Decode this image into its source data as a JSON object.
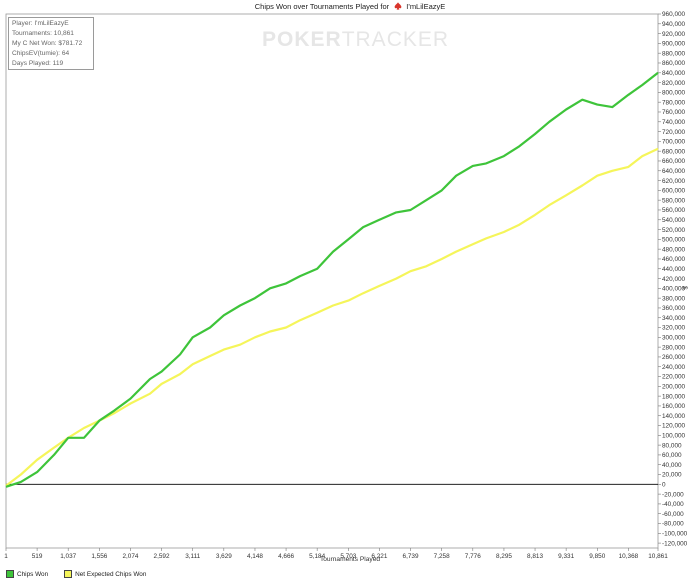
{
  "title": {
    "prefix": "Chips Won over Tournaments Played for",
    "player": "I'mLilEazyE"
  },
  "watermark": {
    "part1": "POKER",
    "part2": "TRACKER"
  },
  "info_box": {
    "player": "Player: I'mLilEazyE",
    "tournaments": "Tournaments: 10,861",
    "net_won": "My C Net Won: $781.72",
    "chips_ev": "ChipsEV(tumie): 64",
    "days_played": "Days Played: 119"
  },
  "legend": [
    {
      "label": "Chips Won",
      "color": "#3ec43a"
    },
    {
      "label": "Net Expected Chips Won",
      "color": "#f5f55a"
    }
  ],
  "colors": {
    "chips_won": "#3ec43a",
    "expected": "#f5f55a",
    "zero_line": "#000000",
    "axis": "#555555"
  },
  "chart_data": {
    "type": "line",
    "title": "Chips Won over Tournaments Played for I'mLilEazyE",
    "xlabel": "Tournaments Played",
    "ylabel": "$",
    "xlim": [
      1,
      10861
    ],
    "ylim": [
      -130000,
      960000
    ],
    "x_ticks": [
      1,
      519,
      1037,
      1556,
      2074,
      2592,
      3111,
      3629,
      4148,
      4666,
      5184,
      5703,
      6221,
      6739,
      7258,
      7776,
      8295,
      8813,
      9331,
      9850,
      10368,
      10861
    ],
    "x_tick_labels": [
      "1",
      "519",
      "1,037",
      "1,556",
      "2,074",
      "2,592",
      "3,111",
      "3,629",
      "4,148",
      "4,666",
      "5,184",
      "5,703",
      "6,221",
      "6,739",
      "7,258",
      "7,776",
      "8,295",
      "8,813",
      "9,331",
      "9,850",
      "10,368",
      "10,861"
    ],
    "y_ticks": [
      960000,
      940000,
      920000,
      900000,
      880000,
      860000,
      840000,
      820000,
      800000,
      780000,
      760000,
      740000,
      720000,
      700000,
      680000,
      660000,
      640000,
      620000,
      600000,
      580000,
      560000,
      540000,
      520000,
      500000,
      480000,
      460000,
      440000,
      420000,
      400000,
      380000,
      360000,
      340000,
      320000,
      300000,
      280000,
      260000,
      240000,
      220000,
      200000,
      180000,
      160000,
      140000,
      120000,
      100000,
      80000,
      60000,
      40000,
      20000,
      0,
      -20000,
      -40000,
      -60000,
      -80000,
      -100000,
      -120000
    ],
    "y_tick_labels": [
      "960,000",
      "940,000",
      "920,000",
      "900,000",
      "880,000",
      "860,000",
      "840,000",
      "820,000",
      "800,000",
      "780,000",
      "760,000",
      "740,000",
      "720,000",
      "700,000",
      "680,000",
      "660,000",
      "640,000",
      "620,000",
      "600,000",
      "580,000",
      "560,000",
      "540,000",
      "520,000",
      "500,000",
      "480,000",
      "460,000",
      "440,000",
      "420,000",
      "400,000",
      "380,000",
      "360,000",
      "340,000",
      "320,000",
      "300,000",
      "280,000",
      "260,000",
      "240,000",
      "220,000",
      "200,000",
      "180,000",
      "160,000",
      "140,000",
      "120,000",
      "100,000",
      "80,000",
      "60,000",
      "40,000",
      "20,000",
      "0",
      "-20,000",
      "-40,000",
      "-60,000",
      "-80,000",
      "-100,000",
      "-120,000"
    ],
    "grid": false,
    "legend_position": "bottom-left",
    "series": [
      {
        "name": "Chips Won",
        "x": [
          1,
          250,
          519,
          800,
          1037,
          1300,
          1556,
          1800,
          2074,
          2400,
          2592,
          2900,
          3111,
          3400,
          3629,
          3900,
          4148,
          4400,
          4666,
          4900,
          5184,
          5450,
          5703,
          5950,
          6221,
          6500,
          6739,
          7000,
          7258,
          7500,
          7776,
          8000,
          8295,
          8550,
          8813,
          9050,
          9331,
          9600,
          9850,
          10100,
          10368,
          10600,
          10861
        ],
        "y": [
          -5000,
          5000,
          25000,
          60000,
          95000,
          95000,
          130000,
          150000,
          175000,
          215000,
          230000,
          265000,
          300000,
          320000,
          345000,
          365000,
          380000,
          400000,
          410000,
          425000,
          440000,
          475000,
          500000,
          525000,
          540000,
          555000,
          560000,
          580000,
          600000,
          630000,
          650000,
          655000,
          670000,
          690000,
          715000,
          740000,
          765000,
          785000,
          775000,
          770000,
          795000,
          815000,
          840000
        ]
      },
      {
        "name": "Net Expected Chips Won",
        "x": [
          1,
          250,
          519,
          800,
          1037,
          1300,
          1556,
          1800,
          2074,
          2400,
          2592,
          2900,
          3111,
          3400,
          3629,
          3900,
          4148,
          4400,
          4666,
          4900,
          5184,
          5450,
          5703,
          5950,
          6221,
          6500,
          6739,
          7000,
          7258,
          7500,
          7776,
          8000,
          8295,
          8550,
          8813,
          9050,
          9331,
          9600,
          9850,
          10100,
          10368,
          10600,
          10861
        ],
        "y": [
          -3000,
          20000,
          50000,
          75000,
          95000,
          115000,
          130000,
          145000,
          165000,
          185000,
          205000,
          225000,
          245000,
          262000,
          275000,
          285000,
          300000,
          312000,
          320000,
          335000,
          350000,
          365000,
          375000,
          390000,
          405000,
          420000,
          435000,
          445000,
          460000,
          475000,
          490000,
          502000,
          515000,
          530000,
          550000,
          570000,
          590000,
          610000,
          630000,
          640000,
          648000,
          670000,
          685000
        ]
      }
    ]
  }
}
